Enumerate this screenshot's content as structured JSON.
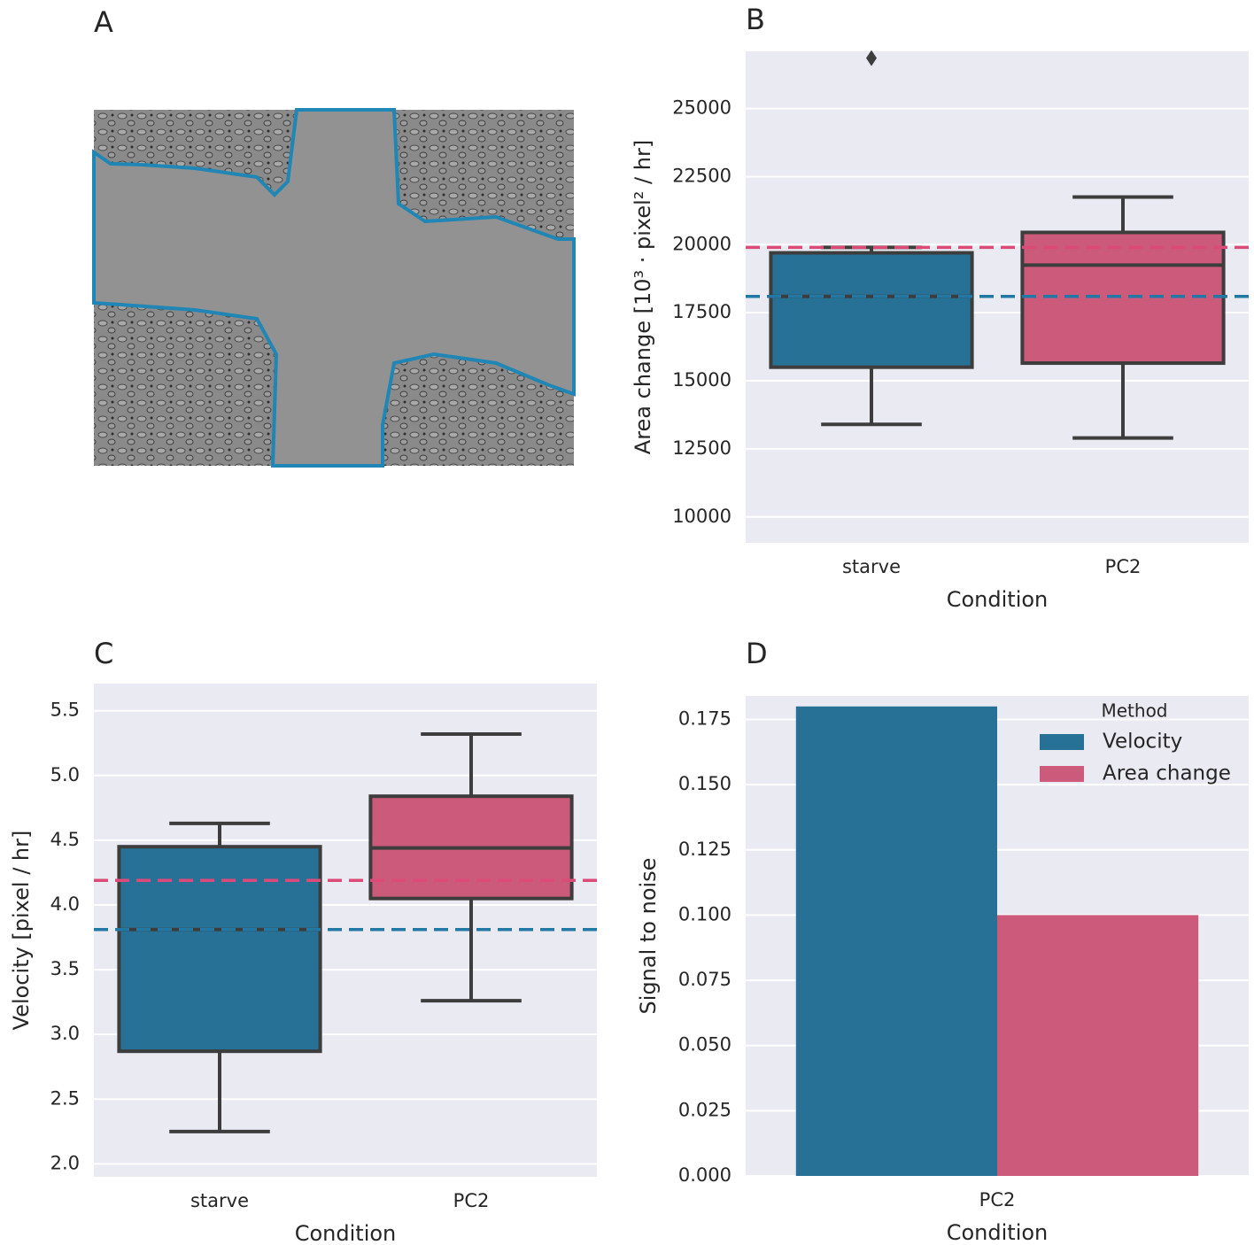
{
  "panel_a": {
    "label": "A"
  },
  "chart_data": [
    {
      "type": "box",
      "label": "B",
      "xlabel": "Condition",
      "ylabel": "Area change [10³ · pixel² / hr]",
      "categories": [
        "starve",
        "PC2"
      ],
      "boxes": [
        {
          "whislo": 13400,
          "q1": 15500,
          "med": 18100,
          "q3": 19700,
          "whishi": 19900,
          "fliers": [
            26850
          ],
          "color": "#287196"
        },
        {
          "whislo": 12900,
          "q1": 15650,
          "med": 19250,
          "q3": 20450,
          "whishi": 21750,
          "fliers": [],
          "color": "#cc5a7b"
        }
      ],
      "hlines": [
        {
          "value": 19900,
          "color": "#dc4a78"
        },
        {
          "value": 18100,
          "color": "#2278a4"
        }
      ],
      "ylim": [
        9050,
        27100
      ],
      "yticks": [
        10000,
        12500,
        15000,
        17500,
        20000,
        22500,
        25000
      ],
      "grid": true
    },
    {
      "type": "box",
      "label": "C",
      "xlabel": "Condition",
      "ylabel": "Velocity [pixel / hr]",
      "categories": [
        "starve",
        "PC2"
      ],
      "boxes": [
        {
          "whislo": 2.25,
          "q1": 2.87,
          "med": 3.81,
          "q3": 4.45,
          "whishi": 4.63,
          "fliers": [],
          "color": "#287196"
        },
        {
          "whislo": 3.26,
          "q1": 4.05,
          "med": 4.44,
          "q3": 4.84,
          "whishi": 5.32,
          "fliers": [],
          "color": "#cc5a7b"
        }
      ],
      "hlines": [
        {
          "value": 4.19,
          "color": "#dc4a78"
        },
        {
          "value": 3.81,
          "color": "#2278a4"
        }
      ],
      "ylim": [
        1.9,
        5.71
      ],
      "yticks": [
        {
          "value": 2,
          "label": "2.0"
        },
        2.5,
        {
          "value": 3,
          "label": "3.0"
        },
        3.5,
        {
          "value": 4,
          "label": "4.0"
        },
        4.5,
        {
          "value": 5,
          "label": "5.0"
        },
        5.5
      ],
      "grid": true
    },
    {
      "type": "bar",
      "label": "D",
      "xlabel": "Condition",
      "ylabel": "Signal to noise",
      "categories": [
        "PC2"
      ],
      "series": [
        {
          "name": "Velocity",
          "color": "#287196",
          "values": [
            0.18
          ]
        },
        {
          "name": "Area change",
          "color": "#cc5a7b",
          "values": [
            0.1
          ]
        }
      ],
      "legend_title": "Method",
      "legend": "upper right",
      "ylim": [
        0,
        0.184
      ],
      "yticks": [
        {
          "value": 0,
          "label": "0.000"
        },
        0.025,
        {
          "value": 0.05,
          "label": "0.050"
        },
        0.075,
        {
          "value": 0.1,
          "label": "0.100"
        },
        0.125,
        {
          "value": 0.15,
          "label": "0.150"
        },
        0.175
      ],
      "grid": true
    }
  ]
}
